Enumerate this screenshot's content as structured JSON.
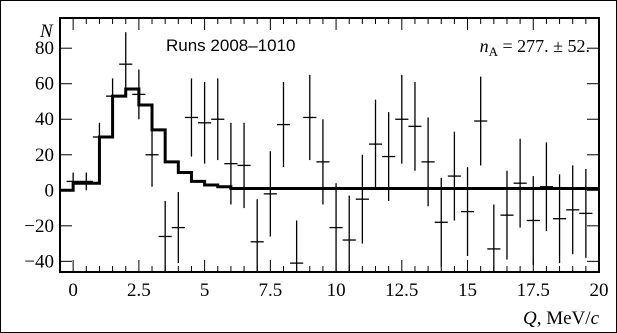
{
  "chart_data": {
    "type": "line",
    "annotation_runs": "Runs 2008–1010",
    "annotation_n_var": "n",
    "annotation_n_sub": "A",
    "annotation_n_value": " = 277. ± 52.",
    "ylabel": "N",
    "xlabel_var": "Q",
    "xlabel_unit": ", MeV/",
    "xlabel_unit_var": "c",
    "xlim": [
      -0.5,
      20
    ],
    "ylim": [
      -46,
      97
    ],
    "x_ticks": [
      0,
      2.5,
      5,
      7.5,
      10,
      12.5,
      15,
      17.5,
      20
    ],
    "x_tick_labels": [
      "0",
      "2.5",
      "5",
      "7.5",
      "10",
      "12.5",
      "15",
      "17.5",
      "20"
    ],
    "y_ticks": [
      -40,
      -20,
      0,
      20,
      40,
      60,
      80
    ],
    "y_tick_labels": [
      "−40",
      "−20",
      "0",
      "20",
      "40",
      "60",
      "80"
    ],
    "grid": false,
    "series": [
      {
        "kind": "points_with_errors",
        "x": [
          0,
          0.5,
          1.0,
          1.5,
          2.0,
          2.5,
          3.0,
          3.5,
          4.0,
          4.5,
          5.0,
          5.5,
          6.0,
          6.5,
          7.0,
          7.5,
          8.0,
          8.5,
          9.0,
          9.5,
          10.0,
          10.5,
          11.0,
          11.5,
          12.0,
          12.5,
          13.0,
          13.5,
          14.0,
          14.5,
          15.0,
          15.5,
          16.0,
          16.5,
          17.0,
          17.5,
          18.0,
          18.5,
          19.0,
          19.5
        ],
        "y": [
          5,
          5,
          30,
          53,
          71,
          54,
          20,
          -26,
          -21,
          41,
          38,
          40,
          15,
          14,
          -29,
          -2,
          37,
          -41,
          41,
          16,
          -21,
          -28,
          -5,
          26,
          19,
          40,
          36,
          16,
          -18,
          8,
          -12,
          39,
          -33,
          -14,
          4,
          -17,
          2,
          -16,
          -11,
          -13
        ],
        "err": [
          5,
          5,
          8,
          10,
          18,
          14,
          18,
          20,
          20,
          22,
          23,
          23,
          23,
          24,
          24,
          24,
          24,
          24,
          24,
          24,
          25,
          25,
          25,
          25,
          25,
          25,
          25,
          25,
          25,
          25,
          25,
          25,
          25,
          25,
          25,
          25,
          25,
          25,
          25,
          25
        ]
      },
      {
        "kind": "fit_histogram",
        "edges": [
          -0.5,
          0,
          0.5,
          1.0,
          1.5,
          2.0,
          2.5,
          3.0,
          3.5,
          4.0,
          4.5,
          5.0,
          5.5,
          6.0,
          20
        ],
        "values": [
          0,
          4,
          4,
          30,
          53,
          57,
          48,
          34,
          16,
          10,
          5,
          3,
          2,
          1
        ]
      }
    ]
  }
}
